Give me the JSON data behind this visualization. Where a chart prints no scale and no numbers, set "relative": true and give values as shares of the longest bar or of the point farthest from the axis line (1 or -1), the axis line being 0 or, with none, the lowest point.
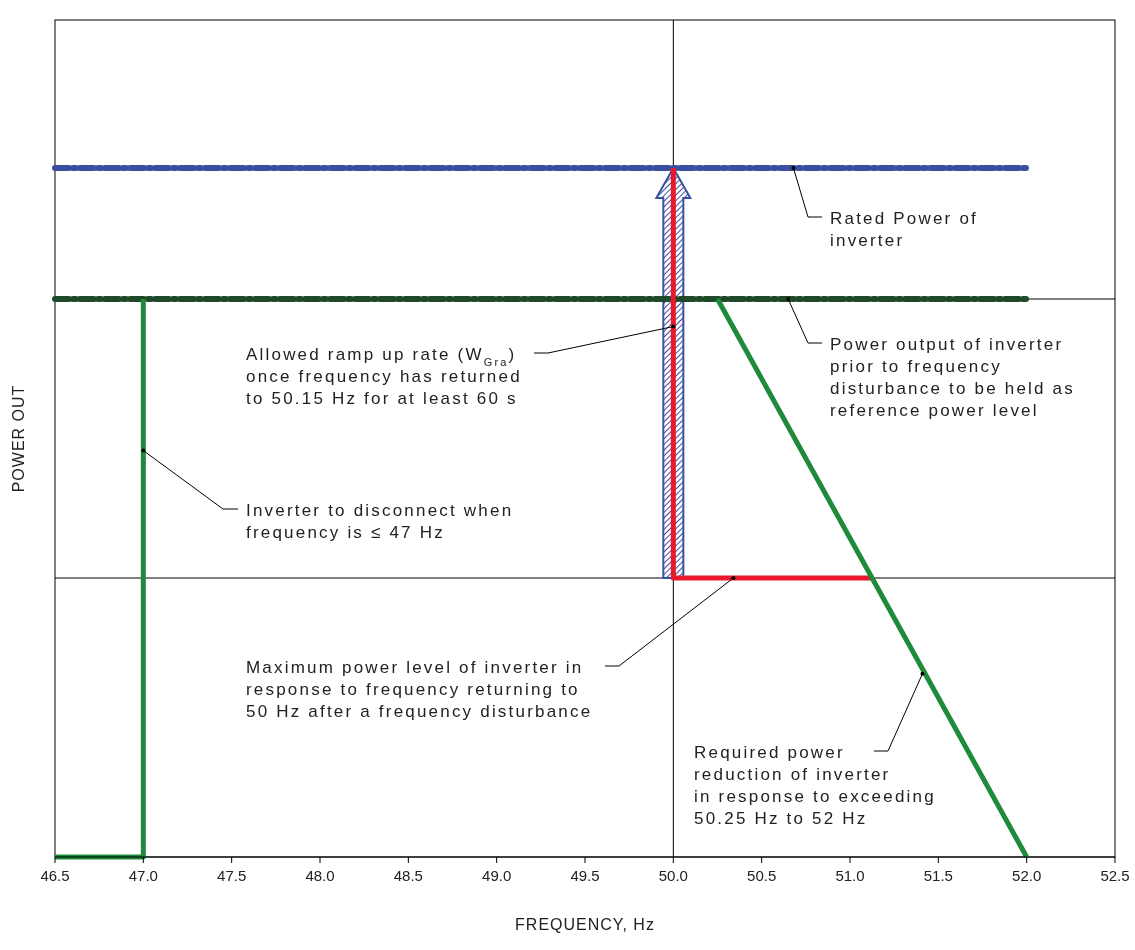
{
  "chart_data": {
    "type": "line",
    "relative": true,
    "xlabel": "FREQUENCY, Hz",
    "ylabel": "POWER OUT",
    "xlim": [
      46.5,
      52.5
    ],
    "xticks": [
      {
        "value": 46.5,
        "label": "46.5"
      },
      {
        "value": 47,
        "label": "47.0"
      },
      {
        "value": 47.5,
        "label": "47.5"
      },
      {
        "value": 48,
        "label": "48.0"
      },
      {
        "value": 48.5,
        "label": "48.5"
      },
      {
        "value": 49,
        "label": "49.0"
      },
      {
        "value": 49.5,
        "label": "49.5"
      },
      {
        "value": 50,
        "label": "50.0"
      },
      {
        "value": 50.5,
        "label": "50.5"
      },
      {
        "value": 51,
        "label": "51.0"
      },
      {
        "value": 51.5,
        "label": "51.5"
      },
      {
        "value": 52,
        "label": "52.0"
      },
      {
        "value": 52.5,
        "label": "52.5"
      }
    ],
    "series": [
      {
        "color": "#3a4fa0",
        "line_style": "dashed",
        "x": [
          46.5,
          52
        ],
        "values": [
          1,
          1
        ]
      },
      {
        "color": "#1f4a2a",
        "line_style": "dashed",
        "x": [
          46.5,
          52
        ],
        "values": [
          0.81,
          0.81
        ]
      },
      {
        "color": "#e8192c",
        "line_style": "solid",
        "x": [
          50,
          50,
          51.125
        ],
        "values": [
          1,
          0.405,
          0.405
        ]
      },
      {
        "color": "#1e8a3a",
        "line_style": "solid",
        "x": [
          46.5,
          47,
          47,
          48.5,
          50.25,
          52
        ],
        "values": [
          0,
          0,
          0.81,
          null,
          0.81,
          0
        ]
      }
    ],
    "ref_lines": [
      {
        "axis": "x",
        "value": 50,
        "color": "#000000"
      },
      {
        "axis": "y",
        "value": 0.81,
        "color": "#000000"
      },
      {
        "axis": "y",
        "value": 0.405,
        "color": "#000000"
      }
    ],
    "annotations": [
      {
        "text": "Rated Power of\ninverter",
        "x": 50.68,
        "y": 1
      },
      {
        "text": "Power output of inverter\nprior to frequency\ndisturbance to be held as\nreference power level",
        "x": 50.65,
        "y": 0.81
      },
      {
        "text": "Allowed ramp up rate (W$_{Gra}$)\nonce frequency has returned\nto 50.15 Hz for at least 60 s",
        "x": 50,
        "y": 0.77
      },
      {
        "text": "Inverter to disconnect when\nfrequency is ≤ 47 Hz",
        "x": 47,
        "y": 0.59
      },
      {
        "text": "Maximum power level of inverter in\nresponse to frequency returning to\n50 Hz after a frequency disturbance",
        "x": 50.34,
        "y": 0.405
      },
      {
        "text": "Required power\nreduction of inverter\nin response to exceeding\n50.25 Hz to 52 Hz",
        "x": 51.41,
        "y": 0.266
      }
    ],
    "grid": false,
    "marker": "none"
  }
}
